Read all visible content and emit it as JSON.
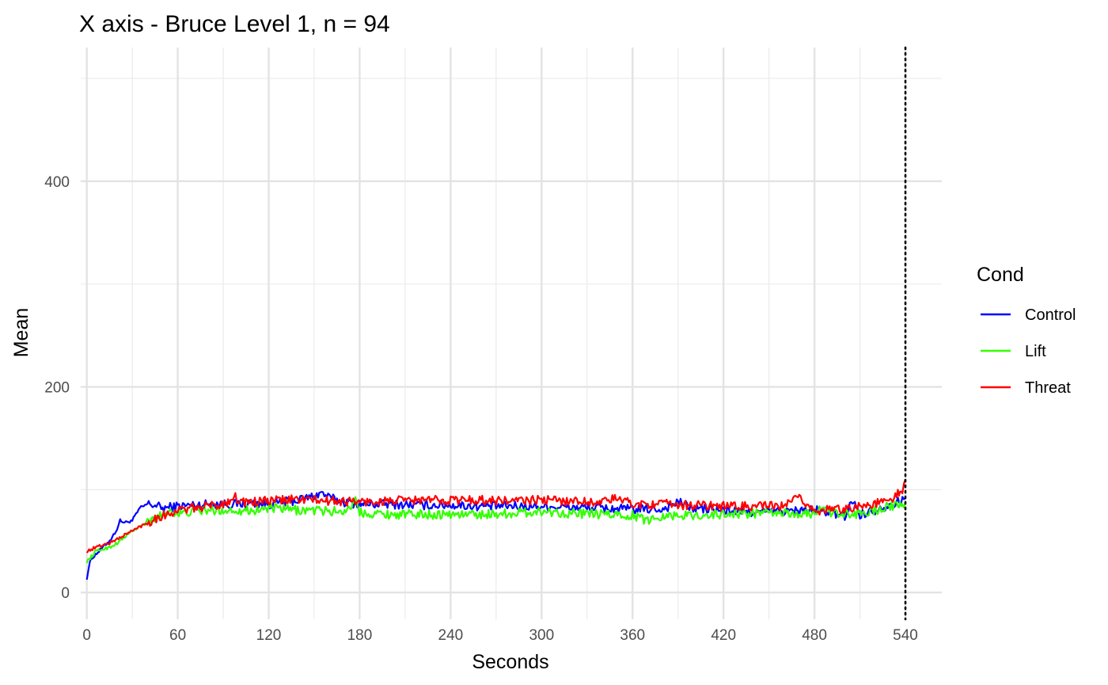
{
  "chart_data": {
    "type": "line",
    "title": "X axis - Bruce Level 1, n =  94",
    "xlabel": "Seconds",
    "ylabel": "Mean",
    "xlim": [
      -4,
      564
    ],
    "ylim": [
      -26,
      530
    ],
    "x_ticks": [
      0,
      60,
      120,
      180,
      240,
      300,
      360,
      420,
      480,
      540
    ],
    "x_tick_labels": [
      "0",
      "60",
      "120",
      "180",
      "240",
      "300",
      "360",
      "420",
      "480",
      "540"
    ],
    "y_ticks": [
      0,
      200,
      400
    ],
    "y_tick_labels": [
      "0",
      "200",
      "400"
    ],
    "y_minor_gridlines": [
      100,
      300,
      500
    ],
    "x_minor_gridlines": [
      30,
      90,
      150,
      210,
      270,
      330,
      390,
      450,
      510
    ],
    "grid": true,
    "vline": {
      "x": 540,
      "style": "dotted",
      "color": "#000000"
    },
    "legend": {
      "title": "Cond",
      "position": "right"
    },
    "series": [
      {
        "name": "Control",
        "color": "#0000ff",
        "x": [
          0,
          2,
          5,
          8,
          12,
          16,
          20,
          22,
          25,
          30,
          35,
          40,
          45,
          50,
          60,
          70,
          80,
          90,
          100,
          110,
          120,
          130,
          140,
          150,
          155,
          160,
          170,
          180,
          200,
          220,
          240,
          260,
          280,
          300,
          320,
          340,
          360,
          380,
          390,
          400,
          420,
          440,
          460,
          480,
          490,
          500,
          505,
          510,
          520,
          530,
          535,
          538,
          540
        ],
        "y": [
          14,
          30,
          36,
          40,
          46,
          52,
          62,
          70,
          68,
          70,
          82,
          86,
          85,
          82,
          84,
          85,
          86,
          86,
          86,
          87,
          86,
          88,
          90,
          94,
          97,
          92,
          88,
          86,
          86,
          85,
          85,
          84,
          84,
          84,
          83,
          82,
          81,
          81,
          88,
          82,
          80,
          78,
          79,
          80,
          78,
          74,
          90,
          76,
          80,
          86,
          88,
          90,
          92
        ]
      },
      {
        "name": "Lift",
        "color": "#33ff00",
        "x": [
          0,
          3,
          6,
          10,
          15,
          20,
          25,
          30,
          35,
          40,
          45,
          50,
          55,
          60,
          70,
          80,
          90,
          100,
          110,
          120,
          130,
          140,
          150,
          160,
          170,
          178,
          180,
          190,
          200,
          220,
          240,
          260,
          280,
          300,
          320,
          340,
          360,
          370,
          380,
          400,
          420,
          440,
          460,
          480,
          485,
          490,
          500,
          510,
          520,
          530,
          535,
          538,
          540
        ],
        "y": [
          30,
          35,
          40,
          42,
          44,
          48,
          54,
          60,
          64,
          68,
          72,
          76,
          80,
          76,
          79,
          80,
          80,
          80,
          80,
          82,
          81,
          80,
          80,
          79,
          79,
          90,
          78,
          77,
          76,
          76,
          76,
          76,
          77,
          79,
          77,
          76,
          75,
          70,
          75,
          75,
          76,
          77,
          77,
          76,
          86,
          78,
          75,
          77,
          80,
          84,
          84,
          86,
          88
        ]
      },
      {
        "name": "Threat",
        "color": "#ff0000",
        "x": [
          0,
          3,
          6,
          10,
          15,
          20,
          25,
          30,
          35,
          40,
          45,
          50,
          55,
          60,
          70,
          80,
          90,
          98,
          100,
          110,
          120,
          130,
          140,
          150,
          160,
          170,
          180,
          200,
          220,
          240,
          260,
          280,
          300,
          320,
          340,
          350,
          360,
          380,
          400,
          420,
          440,
          460,
          470,
          480,
          490,
          500,
          510,
          520,
          530,
          535,
          538,
          540
        ],
        "y": [
          40,
          42,
          44,
          46,
          48,
          52,
          56,
          60,
          64,
          68,
          72,
          75,
          77,
          80,
          82,
          84,
          86,
          94,
          88,
          88,
          89,
          90,
          91,
          90,
          89,
          89,
          88,
          89,
          90,
          90,
          90,
          89,
          90,
          89,
          88,
          92,
          86,
          86,
          85,
          84,
          84,
          84,
          92,
          80,
          80,
          82,
          84,
          86,
          90,
          96,
          100,
          110
        ]
      }
    ]
  }
}
